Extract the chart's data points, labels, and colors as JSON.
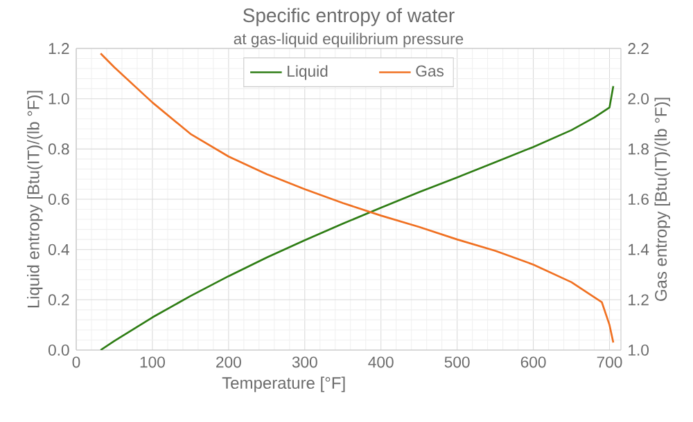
{
  "chart_data": {
    "type": "line",
    "title": "Specific entropy of water",
    "subtitle": "at gas-liquid equilibrium pressure",
    "xlabel": "Temperature  [°F]",
    "ylabel": "Liquid entropy [Btu(IT)/(lb °F)]",
    "y2label": "Gas entropy [Btu(IT)/(lb °F)]",
    "x": [
      32,
      50,
      100,
      150,
      200,
      250,
      300,
      350,
      400,
      450,
      500,
      550,
      600,
      650,
      680,
      690,
      700,
      705
    ],
    "series": [
      {
        "name": "Liquid",
        "color": "#2e7d14",
        "axis": "y",
        "values": [
          0,
          0.036,
          0.13,
          0.215,
          0.294,
          0.368,
          0.437,
          0.503,
          0.566,
          0.628,
          0.687,
          0.747,
          0.808,
          0.875,
          0.925,
          0.945,
          0.965,
          1.05
        ]
      },
      {
        "name": "Gas",
        "color": "#f07021",
        "axis": "y2",
        "values": [
          2.18,
          2.125,
          1.985,
          1.86,
          1.77,
          1.7,
          1.64,
          1.585,
          1.535,
          1.49,
          1.44,
          1.395,
          1.34,
          1.27,
          1.21,
          1.19,
          1.1,
          1.03
        ]
      }
    ],
    "xlim": [
      0,
      715
    ],
    "xticks": [
      0,
      100,
      200,
      300,
      400,
      500,
      600,
      700
    ],
    "ylim": [
      0,
      1.2
    ],
    "yticks": [
      {
        "value": 0,
        "label": "0.0"
      },
      0.2,
      0.4,
      0.6,
      0.8,
      {
        "value": 1,
        "label": "1.0"
      },
      1.2
    ],
    "y2lim": [
      1,
      2.2
    ],
    "y2ticks": [
      {
        "value": 1,
        "label": "1.0"
      },
      1.2,
      1.4,
      1.6,
      1.8,
      {
        "value": 2,
        "label": "2.0"
      },
      2.2
    ],
    "grid": true,
    "legend": "top",
    "marker": "none",
    "line_style": "solid"
  }
}
